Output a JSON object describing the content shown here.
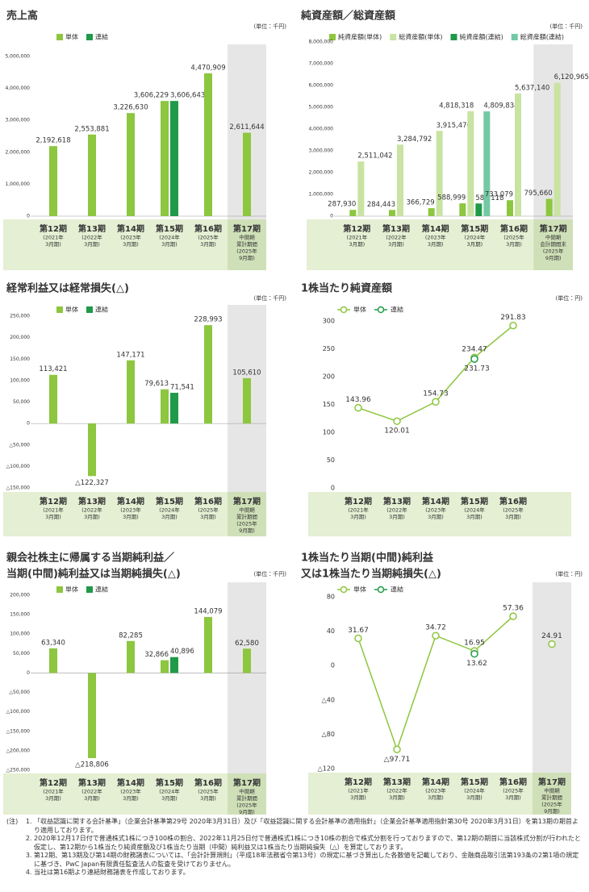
{
  "chart_data": [
    {
      "type": "bar",
      "title": "売上高",
      "unit": "(単位：千円)",
      "categories": [
        [
          "第12期",
          "(2021年",
          "3月期)"
        ],
        [
          "第13期",
          "(2022年",
          "3月期)"
        ],
        [
          "第14期",
          "(2023年",
          "3月期)"
        ],
        [
          "第15期",
          "(2024年",
          "3月期)"
        ],
        [
          "第16期",
          "(2025年",
          "3月期)"
        ],
        [
          "第17期",
          "中間期",
          "累計期間",
          "(2025年",
          "9月期)"
        ]
      ],
      "series": [
        {
          "name": "単体",
          "color": "#8dc63f",
          "values": [
            2192618,
            2553881,
            3226630,
            3606229,
            4470909,
            2611644
          ],
          "value_labels": [
            "2,192,618",
            "2,553,881",
            "3,226,630",
            "3,606,229",
            "4,470,909",
            "2,611,644"
          ]
        },
        {
          "name": "連結",
          "color": "#1f9a48",
          "values": [
            null,
            null,
            null,
            3606643,
            null,
            null
          ],
          "value_labels": [
            null,
            null,
            null,
            "3,606,643",
            null,
            null
          ]
        }
      ],
      "ylim": [
        0,
        5000000
      ],
      "yticks": [
        0,
        {
          "value": 1000000,
          "label": "1,000,000"
        },
        {
          "value": 2000000,
          "label": "2,000,000"
        },
        {
          "value": 3000000,
          "label": "3,000,000"
        },
        {
          "value": 4000000,
          "label": "4,000,000"
        },
        {
          "value": 5000000,
          "label": "5,000,000"
        }
      ],
      "grid": false
    },
    {
      "type": "bar",
      "title": "純資産額／総資産額",
      "unit": "(単位：千円)",
      "categories": [
        [
          "第12期",
          "(2021年",
          "3月期)"
        ],
        [
          "第13期",
          "(2022年",
          "3月期)"
        ],
        [
          "第14期",
          "(2023年",
          "3月期)"
        ],
        [
          "第15期",
          "(2024年",
          "3月期)"
        ],
        [
          "第16期",
          "(2025年",
          "3月期)"
        ],
        [
          "第17期",
          "中間期",
          "会計期間末",
          "(2025年",
          "9月期)"
        ]
      ],
      "series": [
        {
          "name": "純資産額(単体)",
          "color": "#8dc63f",
          "values": [
            287930,
            284443,
            366729,
            588999,
            733079,
            795660
          ],
          "value_labels": [
            "287,930",
            "284,443",
            "366,729",
            "588,999",
            "733,079",
            "795,660"
          ]
        },
        {
          "name": "総資産額(単体)",
          "color": "#c9e3a2",
          "values": [
            2511042,
            3284792,
            3915470,
            4818318,
            5637140,
            6120965
          ],
          "value_labels": [
            "2,511,042",
            "3,284,792",
            "3,915,470",
            "4,818,318",
            "5,637,140",
            "6,120,965"
          ]
        },
        {
          "name": "純資産額(連結)",
          "color": "#1f9a48",
          "values": [
            null,
            null,
            null,
            582118,
            null,
            null
          ],
          "value_labels": [
            null,
            null,
            null,
            "582,118",
            null,
            null
          ]
        },
        {
          "name": "総資産額(連結)",
          "color": "#74c8a4",
          "values": [
            null,
            null,
            null,
            4809834,
            null,
            null
          ],
          "value_labels": [
            null,
            null,
            null,
            "4,809,834",
            null,
            null
          ]
        }
      ],
      "ylim": [
        0,
        8000000
      ],
      "yticks": [
        0,
        {
          "value": 1000000,
          "label": "1,000,000"
        },
        {
          "value": 2000000,
          "label": "2,000,000"
        },
        {
          "value": 3000000,
          "label": "3,000,000"
        },
        {
          "value": 4000000,
          "label": "4,000,000"
        },
        {
          "value": 5000000,
          "label": "5,000,000"
        },
        {
          "value": 6000000,
          "label": "6,000,000"
        },
        {
          "value": 7000000,
          "label": "7,000,000"
        },
        {
          "value": 8000000,
          "label": "8,000,000"
        }
      ],
      "grid": false
    },
    {
      "type": "bar",
      "title": "経常利益又は経常損失(△)",
      "unit": "(単位：千円)",
      "categories": [
        [
          "第12期",
          "(2021年",
          "3月期)"
        ],
        [
          "第13期",
          "(2022年",
          "3月期)"
        ],
        [
          "第14期",
          "(2023年",
          "3月期)"
        ],
        [
          "第15期",
          "(2024年",
          "3月期)"
        ],
        [
          "第16期",
          "(2025年",
          "3月期)"
        ],
        [
          "第17期",
          "中間期",
          "累計期間",
          "(2025年",
          "9月期)"
        ]
      ],
      "series": [
        {
          "name": "単体",
          "color": "#8dc63f",
          "values": [
            113421,
            -122327,
            147171,
            79613,
            228993,
            105610
          ],
          "value_labels": [
            "113,421",
            "△122,327",
            "147,171",
            "79,613",
            "228,993",
            "105,610"
          ]
        },
        {
          "name": "連結",
          "color": "#1f9a48",
          "values": [
            null,
            null,
            null,
            71541,
            null,
            null
          ],
          "value_labels": [
            null,
            null,
            null,
            "71,541",
            null,
            null
          ]
        }
      ],
      "ylim": [
        -150000,
        250000
      ],
      "yticks": [
        {
          "value": -150000,
          "label": "△150,000"
        },
        {
          "value": -100000,
          "label": "△100,000"
        },
        {
          "value": -50000,
          "label": "△50,000"
        },
        0,
        {
          "value": 50000,
          "label": "50,000"
        },
        {
          "value": 100000,
          "label": "100,000"
        },
        {
          "value": 150000,
          "label": "150,000"
        },
        {
          "value": 200000,
          "label": "200,000"
        },
        {
          "value": 250000,
          "label": "250,000"
        }
      ],
      "grid": false
    },
    {
      "type": "line",
      "title": "1株当たり純資産額",
      "unit": "(単位：円)",
      "categories": [
        [
          "第12期",
          "(2021年",
          "3月期)"
        ],
        [
          "第13期",
          "(2022年",
          "3月期)"
        ],
        [
          "第14期",
          "(2023年",
          "3月期)"
        ],
        [
          "第15期",
          "(2024年",
          "3月期)"
        ],
        [
          "第16期",
          "(2025年",
          "3月期)"
        ]
      ],
      "series": [
        {
          "name": "単体",
          "color": "#8dc63f",
          "values": [
            143.96,
            120.01,
            154.73,
            234.47,
            291.83
          ]
        },
        {
          "name": "連結",
          "color": "#1f9a48",
          "values": [
            null,
            null,
            null,
            231.73,
            null
          ]
        }
      ],
      "ylim": [
        0,
        300
      ],
      "yticks": [
        0,
        50,
        100,
        150,
        200,
        250,
        300
      ],
      "grid": false
    },
    {
      "type": "bar",
      "title": [
        "親会社株主に帰属する当期純利益／",
        "当期(中間)純利益又は当期純損失(△)"
      ],
      "unit": "(単位：千円)",
      "categories": [
        [
          "第12期",
          "(2021年",
          "3月期)"
        ],
        [
          "第13期",
          "(2022年",
          "3月期)"
        ],
        [
          "第14期",
          "(2023年",
          "3月期)"
        ],
        [
          "第15期",
          "(2024年",
          "3月期)"
        ],
        [
          "第16期",
          "(2025年",
          "3月期)"
        ],
        [
          "第17期",
          "中間期",
          "累計期間",
          "(2025年",
          "9月期)"
        ]
      ],
      "series": [
        {
          "name": "単体",
          "color": "#8dc63f",
          "values": [
            63340,
            -218806,
            82285,
            32866,
            144079,
            62580
          ],
          "value_labels": [
            "63,340",
            "△218,806",
            "82,285",
            "32,866",
            "144,079",
            "62,580"
          ]
        },
        {
          "name": "連結",
          "color": "#1f9a48",
          "values": [
            null,
            null,
            null,
            40896,
            null,
            null
          ],
          "value_labels": [
            null,
            null,
            null,
            "40,896",
            null,
            null
          ]
        }
      ],
      "ylim": [
        -250000,
        200000
      ],
      "yticks": [
        {
          "value": -250000,
          "label": "△250,000"
        },
        {
          "value": -200000,
          "label": "△200,000"
        },
        {
          "value": -150000,
          "label": "△150,000"
        },
        {
          "value": -100000,
          "label": "△100,000"
        },
        {
          "value": -50000,
          "label": "△50,000"
        },
        0,
        {
          "value": 50000,
          "label": "50,000"
        },
        {
          "value": 100000,
          "label": "100,000"
        },
        {
          "value": 150000,
          "label": "150,000"
        },
        {
          "value": 200000,
          "label": "200,000"
        }
      ],
      "grid": false
    },
    {
      "type": "line",
      "title": [
        "1株当たり当期(中間)純利益",
        "又は1株当たり当期純損失(△)"
      ],
      "unit": "(単位：円)",
      "categories": [
        [
          "第12期",
          "(2021年",
          "3月期)"
        ],
        [
          "第13期",
          "(2022年",
          "3月期)"
        ],
        [
          "第14期",
          "(2023年",
          "3月期)"
        ],
        [
          "第15期",
          "(2024年",
          "3月期)"
        ],
        [
          "第16期",
          "(2025年",
          "3月期)"
        ],
        [
          "第17期",
          "中間期",
          "累計期間",
          "(2025年",
          "9月期)"
        ]
      ],
      "series": [
        {
          "name": "単体",
          "color": "#8dc63f",
          "values": [
            31.67,
            -97.71,
            34.72,
            16.95,
            57.36,
            24.91
          ],
          "value_labels": [
            "31.67",
            "△97.71",
            "34.72",
            "16.95",
            "57.36",
            "24.91"
          ]
        },
        {
          "name": "連結",
          "color": "#1f9a48",
          "values": [
            null,
            null,
            null,
            13.62,
            null,
            null
          ]
        }
      ],
      "ylim": [
        -120,
        80
      ],
      "yticks": [
        {
          "value": -120,
          "label": "△120"
        },
        {
          "value": -80,
          "label": "△80"
        },
        {
          "value": -40,
          "label": "△40"
        },
        0,
        40,
        80
      ],
      "grid": false
    }
  ],
  "notes": {
    "label": "(注)",
    "items": [
      "「収益認識に関する会計基準」（企業会計基準第29号 2020年3月31日）及び「収益認識に関する会計基準の適用指針」（企業会計基準適用指針第30号 2020年3月31日）を第13期の期首より適用しております。",
      "2020年12月17日付で普通株式1株につき100株の割合、2022年11月25日付で普通株式1株につき10株の割合で株式分割を行っておりますので、第12期の期首に当該株式分割が行われたと仮定し、第12期から1株当たり純資産額及び1株当たり当期（中間）純利益又は1株当たり当期純損失（△）を算定しております。",
      "第12期、第13期及び第14期の財務諸表については、「会計計算規則」（平成18年法務省令第13号）の規定に基づき算出した各数値を記載しており、金融商品取引法第193条の2第1項の規定に基づき、PwC Japan有限責任監査法人の監査を受けておりません。",
      "当社は第16期より連結財務諸表を作成しております。"
    ]
  }
}
